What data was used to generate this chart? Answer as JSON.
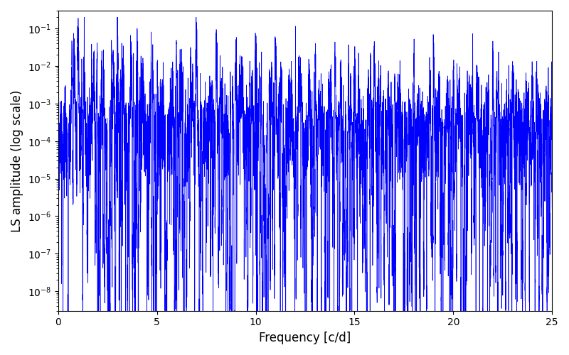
{
  "xlabel": "Frequency [c/d]",
  "ylabel": "LS amplitude (log scale)",
  "line_color": "#0000FF",
  "line_width": 0.5,
  "xlim": [
    0,
    25
  ],
  "ylim": [
    3e-09,
    0.3
  ],
  "yscale": "log",
  "figsize": [
    8.0,
    5.0
  ],
  "dpi": 100,
  "freq_max": 25.0,
  "n_points": 10000,
  "seed": 77
}
